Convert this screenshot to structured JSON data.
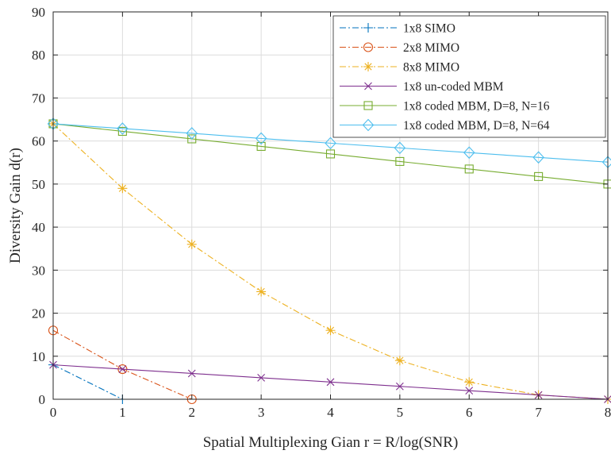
{
  "chart_data": {
    "type": "line",
    "title": "",
    "xlabel": "Spatial Multiplexing Gian r = R/log(SNR)",
    "ylabel": "Diversity Gain d(r)",
    "xlim": [
      0,
      8
    ],
    "ylim": [
      0,
      90
    ],
    "xticks": [
      "0",
      "1",
      "2",
      "3",
      "4",
      "5",
      "6",
      "7",
      "8"
    ],
    "yticks": [
      "0",
      "10",
      "20",
      "30",
      "40",
      "50",
      "60",
      "70",
      "80",
      "90"
    ],
    "grid": true,
    "legend_position": "top-right",
    "series": [
      {
        "name": "1x8 SIMO",
        "color": "#0072bd",
        "dash": "dashdot",
        "marker": "plus",
        "x": [
          0,
          1
        ],
        "y": [
          8,
          0
        ]
      },
      {
        "name": "2x8 MIMO",
        "color": "#d95319",
        "dash": "dashdot",
        "marker": "circle",
        "x": [
          0,
          1,
          2
        ],
        "y": [
          16,
          7,
          0
        ]
      },
      {
        "name": "8x8 MIMO",
        "color": "#edb120",
        "dash": "dashdot",
        "marker": "asterisk",
        "x": [
          0,
          1,
          2,
          3,
          4,
          5,
          6,
          7,
          8
        ],
        "y": [
          64,
          49,
          36,
          25,
          16,
          9,
          4,
          1,
          0
        ]
      },
      {
        "name": "1x8 un-coded MBM",
        "color": "#7e2f8e",
        "dash": "solid",
        "marker": "x",
        "x": [
          0,
          1,
          2,
          3,
          4,
          5,
          6,
          7,
          8
        ],
        "y": [
          8,
          7,
          6,
          5,
          4,
          3,
          2,
          1,
          0
        ]
      },
      {
        "name": "1x8 coded MBM, D=8, N=16",
        "color": "#77ac30",
        "dash": "solid",
        "marker": "square",
        "x": [
          0,
          1,
          2,
          3,
          4,
          5,
          6,
          7,
          8
        ],
        "y": [
          64,
          62.25,
          60.5,
          58.75,
          57,
          55.25,
          53.5,
          51.75,
          50
        ]
      },
      {
        "name": "1x8 coded MBM, D=8, N=64",
        "color": "#4dbeee",
        "dash": "solid",
        "marker": "diamond",
        "x": [
          0,
          1,
          2,
          3,
          4,
          5,
          6,
          7,
          8
        ],
        "y": [
          64,
          62.9,
          61.8,
          60.6,
          59.5,
          58.4,
          57.3,
          56.2,
          55.1
        ]
      }
    ]
  }
}
